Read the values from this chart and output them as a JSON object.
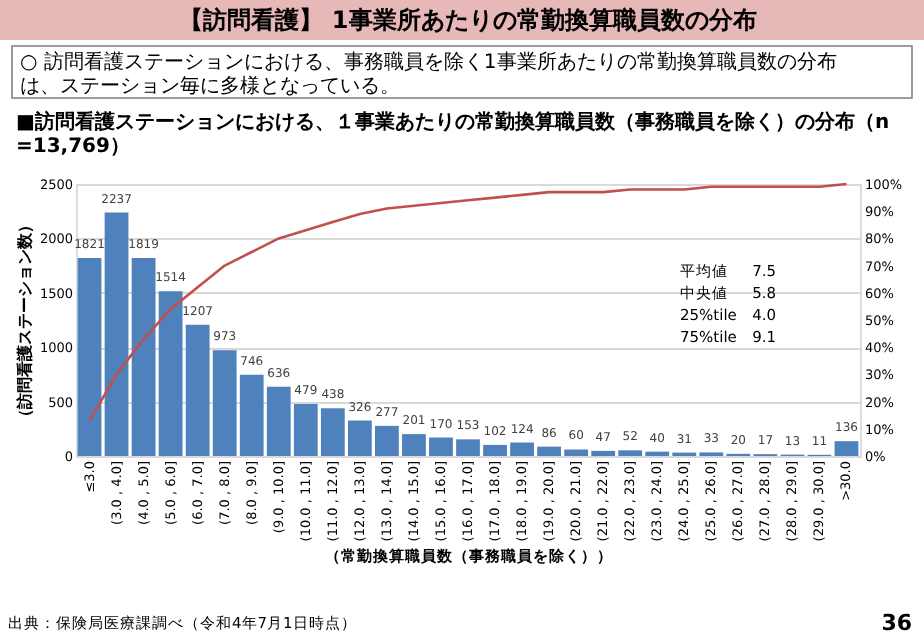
{
  "chart_data": {
    "type": "bar",
    "title": "【訪問看護】 1事業所あたりの常勤換算職員数の分布",
    "subtitle": "○ 訪問看護ステーションにおける、事務職員を除く1事業所あたりの常勤換算職員数の分布は、ステーション毎に多様となっている。",
    "xlabel": "（常勤換算職員数（事務職員を除く））",
    "ylabel": "（訪問看護ステーション数）",
    "categories": [
      "≤3.0",
      "(3.0 , 4.0]",
      "(4.0 , 5.0]",
      "(5.0 , 6.0]",
      "(6.0 , 7.0]",
      "(7.0 , 8.0]",
      "(8.0 , 9.0]",
      "(9.0 , 10.0]",
      "(10.0 , 11.0]",
      "(11.0 , 12.0]",
      "(12.0 , 13.0]",
      "(13.0 , 14.0]",
      "(14.0 , 15.0]",
      "(15.0 , 16.0]",
      "(16.0 , 17.0]",
      "(17.0 , 18.0]",
      "(18.0 , 19.0]",
      "(19.0 , 20.0]",
      "(20.0 , 21.0]",
      "(21.0 , 22.0]",
      "(22.0 , 23.0]",
      "(23.0 , 24.0]",
      "(24.0 , 25.0]",
      "(25.0 , 26.0]",
      "(26.0 , 27.0]",
      "(27.0 , 28.0]",
      "(28.0 , 29.0]",
      "(29.0 , 30.0]",
      ">30.0"
    ],
    "series": [
      {
        "color": "#4f81bd",
        "values": [
          1821,
          2237,
          1819,
          1514,
          1207,
          973,
          746,
          636,
          479,
          438,
          326,
          277,
          201,
          170,
          153,
          102,
          124,
          86,
          60,
          47,
          52,
          40,
          31,
          33,
          20,
          17,
          13,
          11,
          136
        ],
        "value_labels": [
          "1821",
          "2237",
          "1819",
          "1514",
          "1207",
          "973",
          "746",
          "636",
          "479",
          "438",
          "326",
          "277",
          "201",
          "170",
          "153",
          "102",
          "124",
          "86",
          "60",
          "47",
          "52",
          "40",
          "31",
          "33",
          "20",
          "17",
          "13",
          "11",
          "136"
        ]
      },
      {
        "type": "line",
        "axis": "y2",
        "color": "#c0504d",
        "values": [
          13,
          30,
          43,
          54,
          62,
          70,
          75,
          80,
          83,
          86,
          89,
          91,
          92,
          93,
          94,
          95,
          96,
          97,
          97,
          97,
          98,
          98,
          98,
          99,
          99,
          99,
          99,
          99,
          100
        ]
      }
    ],
    "ylim": [
      0,
      2500
    ],
    "yticks": [
      0,
      500,
      1000,
      1500,
      2000,
      2500
    ],
    "y2lim": [
      0,
      100
    ],
    "y2ticks": [
      {
        "value": 0,
        "label": "0%"
      },
      {
        "value": 10,
        "label": "10%"
      },
      {
        "value": 20,
        "label": "20%"
      },
      {
        "value": 30,
        "label": "30%"
      },
      {
        "value": 40,
        "label": "40%"
      },
      {
        "value": 50,
        "label": "50%"
      },
      {
        "value": 60,
        "label": "60%"
      },
      {
        "value": 70,
        "label": "70%"
      },
      {
        "value": 80,
        "label": "80%"
      },
      {
        "value": 90,
        "label": "90%"
      },
      {
        "value": 100,
        "label": "100%"
      }
    ],
    "grid": "y",
    "marker": "none",
    "annotations": [
      "■訪問看護ステーションにおける、１事業あたりの常勤換算職員数（事務職員を除く）の分布（n=13,769）",
      "平均値 7.5",
      "中央値 5.8",
      "25%tile 4.0",
      "75%tile 9.1",
      "出典：保険局医療課調べ（令和4年7月1日時点）",
      "36"
    ]
  }
}
